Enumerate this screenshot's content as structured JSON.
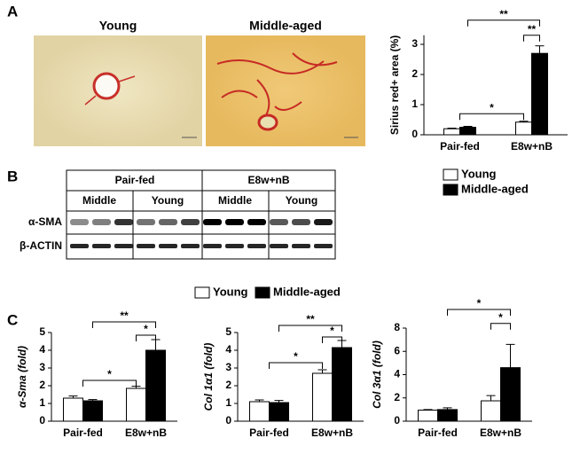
{
  "figure": {
    "panel_labels": [
      "A",
      "B",
      "C"
    ],
    "micrographs": [
      "Young",
      "Middle-aged"
    ],
    "blot": {
      "groups": [
        "Pair-fed",
        "E8w+nB"
      ],
      "subgroups": [
        "Middle",
        "Young",
        "Middle",
        "Young"
      ],
      "rows": [
        "α-SMA",
        "β-ACTIN"
      ]
    }
  },
  "chart_data": [
    {
      "type": "bar",
      "ylabel": "Sirius red+ area (%)",
      "categories": [
        "Pair-fed",
        "E8w+nB"
      ],
      "ylim": [
        0,
        3.3
      ],
      "yticks": [
        0,
        1,
        2,
        3
      ],
      "legend": true,
      "series": [
        {
          "name": "Young",
          "color": "#ffffff",
          "values": [
            0.2,
            0.42
          ],
          "errors": [
            0.02,
            0.03
          ]
        },
        {
          "name": "Middle-aged",
          "color": "#000000",
          "values": [
            0.25,
            2.7
          ],
          "errors": [
            0.03,
            0.25
          ]
        }
      ],
      "annotations": [
        "**",
        "**",
        "*"
      ]
    },
    {
      "type": "bar",
      "ylabel": "α-Sma (fold)",
      "categories": [
        "Pair-fed",
        "E8w+nB"
      ],
      "ylim": [
        0,
        5
      ],
      "yticks": [
        0,
        1,
        2,
        3,
        4,
        5
      ],
      "legend": true,
      "series": [
        {
          "name": "Young",
          "color": "#ffffff",
          "values": [
            1.3,
            1.85
          ],
          "errors": [
            0.12,
            0.12
          ]
        },
        {
          "name": "Middle-aged",
          "color": "#000000",
          "values": [
            1.15,
            4.0
          ],
          "errors": [
            0.07,
            0.6
          ]
        }
      ],
      "annotations": [
        "**",
        "*",
        "*"
      ]
    },
    {
      "type": "bar",
      "ylabel": "Col 1α1 (fold)",
      "categories": [
        "Pair-fed",
        "E8w+nB"
      ],
      "ylim": [
        0,
        5
      ],
      "yticks": [
        0,
        1,
        2,
        3,
        4,
        5
      ],
      "legend": false,
      "series": [
        {
          "color": "#ffffff",
          "values": [
            1.1,
            2.7
          ],
          "errors": [
            0.1,
            0.2
          ]
        },
        {
          "color": "#000000",
          "values": [
            1.05,
            4.15
          ],
          "errors": [
            0.12,
            0.4
          ]
        }
      ],
      "annotations": [
        "**",
        "*",
        "*"
      ]
    },
    {
      "type": "bar",
      "ylabel": "Col 3α1 (fold)",
      "categories": [
        "Pair-fed",
        "E8w+nB"
      ],
      "ylim": [
        0,
        8
      ],
      "yticks": [
        0,
        2,
        4,
        6,
        8
      ],
      "legend": false,
      "series": [
        {
          "color": "#ffffff",
          "values": [
            0.95,
            1.75
          ],
          "errors": [
            0.05,
            0.45
          ]
        },
        {
          "color": "#000000",
          "values": [
            1.0,
            4.6
          ],
          "errors": [
            0.15,
            2.0
          ]
        }
      ],
      "annotations": [
        "*",
        "*"
      ]
    }
  ]
}
